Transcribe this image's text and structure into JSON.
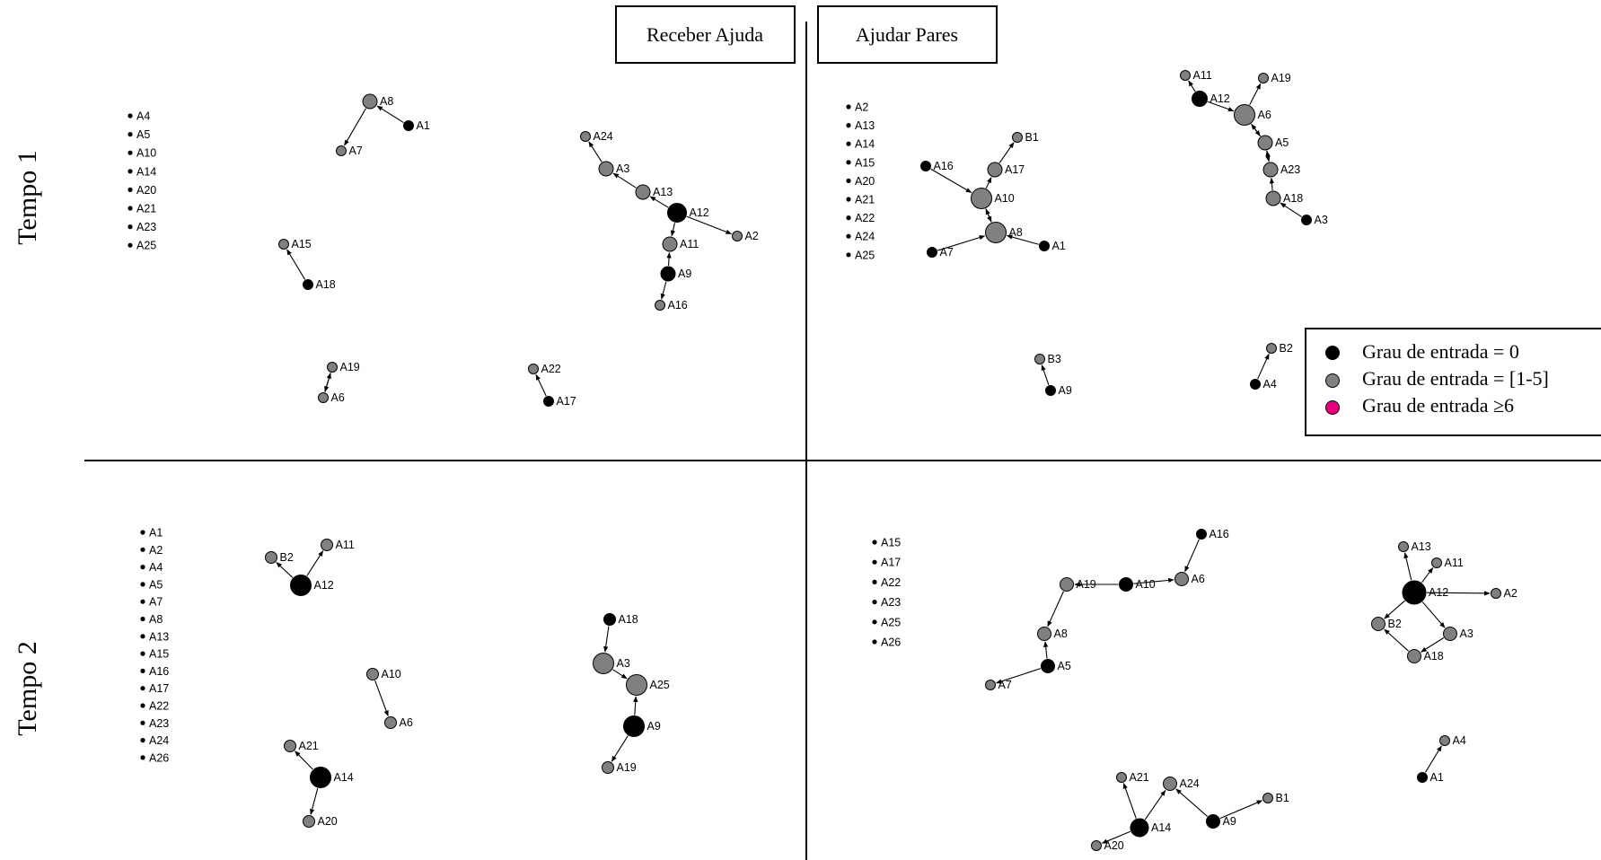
{
  "headers": {
    "left": "Receber Ajuda",
    "right": "Ajudar Pares"
  },
  "rows": {
    "top": "Tempo 1",
    "bottom": "Tempo 2"
  },
  "legend": {
    "items": [
      {
        "label": "Grau de entrada = 0",
        "color": "#000000"
      },
      {
        "label": "Grau de entrada = [1-5]",
        "color": "#808080"
      },
      {
        "label": "Grau de entrada ≥6",
        "color": "#e6007e"
      }
    ]
  },
  "colors": {
    "black": "#000000",
    "gray": "#808080",
    "pink": "#e6007e"
  },
  "panels": {
    "t1_receber": {
      "isolates": [
        "A4",
        "A5",
        "A10",
        "A14",
        "A20",
        "A21",
        "A23",
        "A25"
      ],
      "nodes": [
        "A8",
        "A1",
        "A7",
        "A15",
        "A18",
        "A19",
        "A6",
        "A24",
        "A3",
        "A13",
        "A12",
        "A2",
        "A11",
        "A9",
        "A16",
        "A22",
        "A17"
      ],
      "edges": [
        [
          "A1",
          "A8"
        ],
        [
          "A8",
          "A7"
        ],
        [
          "A18",
          "A15"
        ],
        [
          "A19",
          "A6"
        ],
        [
          "A6",
          "A19"
        ],
        [
          "A3",
          "A24"
        ],
        [
          "A13",
          "A3"
        ],
        [
          "A12",
          "A13"
        ],
        [
          "A12",
          "A2"
        ],
        [
          "A12",
          "A11"
        ],
        [
          "A9",
          "A11"
        ],
        [
          "A9",
          "A16"
        ],
        [
          "A17",
          "A22"
        ]
      ]
    },
    "t1_ajudar": {
      "isolates": [
        "A2",
        "A13",
        "A14",
        "A15",
        "A20",
        "A21",
        "A22",
        "A24",
        "A25"
      ],
      "nodes": [
        "B1",
        "A16",
        "A17",
        "A10",
        "A8",
        "A7",
        "A1",
        "A11",
        "A12",
        "A19",
        "A6",
        "A5",
        "A23",
        "A18",
        "A3",
        "B3",
        "A9",
        "B2",
        "A4"
      ],
      "edges": [
        [
          "A17",
          "B1"
        ],
        [
          "A16",
          "A10"
        ],
        [
          "A10",
          "A17"
        ],
        [
          "A8",
          "A10"
        ],
        [
          "A10",
          "A8"
        ],
        [
          "A7",
          "A8"
        ],
        [
          "A1",
          "A8"
        ],
        [
          "A12",
          "A11"
        ],
        [
          "A12",
          "A6"
        ],
        [
          "A6",
          "A19"
        ],
        [
          "A6",
          "A5"
        ],
        [
          "A5",
          "A6"
        ],
        [
          "A5",
          "A23"
        ],
        [
          "A23",
          "A5"
        ],
        [
          "A18",
          "A23"
        ],
        [
          "A3",
          "A18"
        ],
        [
          "A9",
          "B3"
        ],
        [
          "A4",
          "B2"
        ]
      ]
    },
    "t2_receber": {
      "isolates": [
        "A1",
        "A2",
        "A4",
        "A5",
        "A7",
        "A8",
        "A13",
        "A15",
        "A16",
        "A17",
        "A22",
        "A23",
        "A24",
        "A26"
      ],
      "nodes": [
        "B2",
        "A11",
        "A12",
        "A10",
        "A6",
        "A21",
        "A14",
        "A20",
        "A18",
        "A3",
        "A25",
        "A9",
        "A19"
      ],
      "edges": [
        [
          "A12",
          "B2"
        ],
        [
          "A12",
          "A11"
        ],
        [
          "A10",
          "A6"
        ],
        [
          "A14",
          "A21"
        ],
        [
          "A14",
          "A20"
        ],
        [
          "A18",
          "A3"
        ],
        [
          "A3",
          "A25"
        ],
        [
          "A9",
          "A25"
        ],
        [
          "A9",
          "A19"
        ]
      ]
    },
    "t2_ajudar": {
      "isolates": [
        "A15",
        "A17",
        "A22",
        "A23",
        "A25",
        "A26"
      ],
      "nodes": [
        "A16",
        "A19",
        "A10",
        "A6",
        "A8",
        "A5",
        "A7",
        "A13",
        "A11",
        "A12",
        "A2",
        "B2",
        "A3",
        "A18",
        "A4",
        "A1",
        "A21",
        "A24",
        "A14",
        "A9",
        "B1",
        "A20"
      ],
      "edges": [
        [
          "A16",
          "A6"
        ],
        [
          "A10",
          "A19"
        ],
        [
          "A10",
          "A6"
        ],
        [
          "A19",
          "A8"
        ],
        [
          "A5",
          "A8"
        ],
        [
          "A5",
          "A7"
        ],
        [
          "A12",
          "A13"
        ],
        [
          "A12",
          "A11"
        ],
        [
          "A12",
          "A2"
        ],
        [
          "A12",
          "B2"
        ],
        [
          "A12",
          "A3"
        ],
        [
          "A3",
          "A18"
        ],
        [
          "A18",
          "B2"
        ],
        [
          "A1",
          "A4"
        ],
        [
          "A14",
          "A21"
        ],
        [
          "A14",
          "A24"
        ],
        [
          "A14",
          "A20"
        ],
        [
          "A9",
          "A24"
        ],
        [
          "A9",
          "B1"
        ]
      ]
    }
  }
}
